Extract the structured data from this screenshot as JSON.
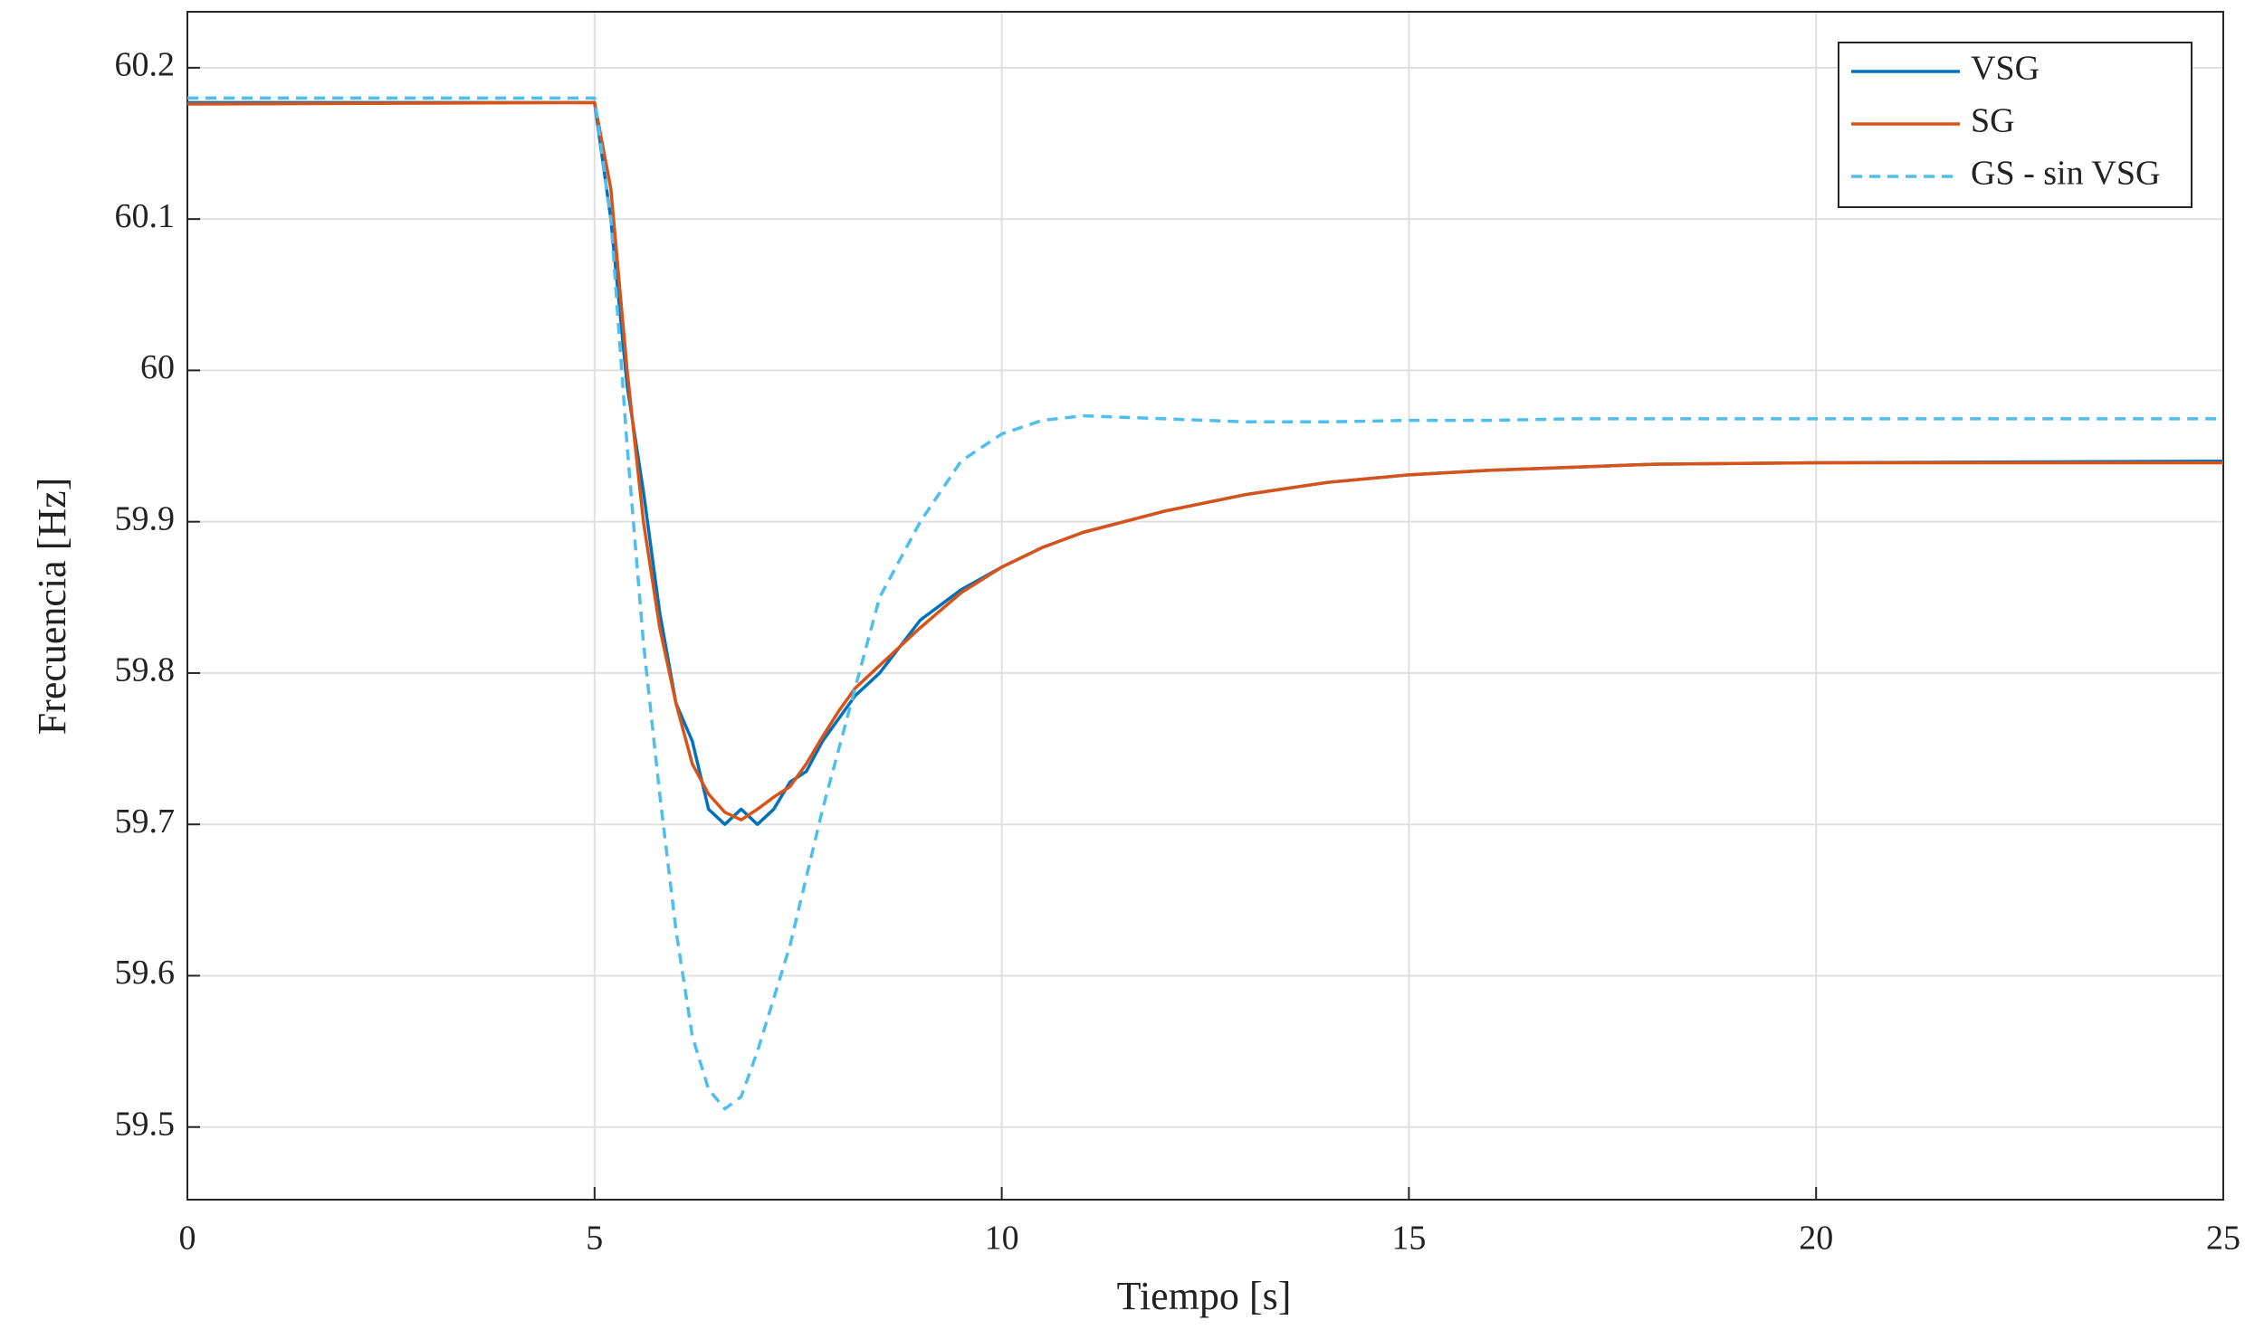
{
  "chart_data": {
    "type": "line",
    "x_label": "Tiempo [s]",
    "y_label": "Frecuencia [Hz]",
    "x": [
      0,
      5,
      5.2,
      5.4,
      5.6,
      5.8,
      6,
      6.2,
      6.4,
      6.6,
      6.8,
      7,
      7.2,
      7.4,
      7.6,
      7.8,
      8,
      8.2,
      8.5,
      9,
      9.5,
      10,
      10.5,
      11,
      12,
      13,
      14,
      15,
      16,
      17,
      18,
      20,
      25
    ],
    "series": [
      {
        "name": "VSG",
        "color": "#0072bd",
        "dashed": false,
        "values": [
          60.177,
          60.177,
          60.1,
          59.99,
          59.92,
          59.84,
          59.78,
          59.755,
          59.71,
          59.7,
          59.71,
          59.7,
          59.71,
          59.728,
          59.735,
          59.755,
          59.77,
          59.785,
          59.8,
          59.835,
          59.855,
          59.87,
          59.883,
          59.893,
          59.907,
          59.918,
          59.926,
          59.931,
          59.934,
          59.936,
          59.938,
          59.939,
          59.94
        ]
      },
      {
        "name": "SG",
        "color": "#d95319",
        "dashed": false,
        "values": [
          60.176,
          60.177,
          60.12,
          60.0,
          59.9,
          59.83,
          59.78,
          59.74,
          59.72,
          59.708,
          59.703,
          59.71,
          59.718,
          59.725,
          59.74,
          59.758,
          59.775,
          59.79,
          59.805,
          59.83,
          59.853,
          59.87,
          59.883,
          59.893,
          59.907,
          59.918,
          59.926,
          59.931,
          59.934,
          59.936,
          59.938,
          59.939,
          59.939
        ]
      },
      {
        "name": "GS - sin VSG",
        "color": "#4dbeee",
        "dashed": true,
        "values": [
          60.18,
          60.18,
          60.1,
          59.95,
          59.82,
          59.72,
          59.63,
          59.56,
          59.525,
          59.512,
          59.52,
          59.55,
          59.585,
          59.62,
          59.665,
          59.71,
          59.75,
          59.79,
          59.85,
          59.9,
          59.94,
          59.958,
          59.967,
          59.97,
          59.968,
          59.966,
          59.966,
          59.967,
          59.967,
          59.968,
          59.968,
          59.968,
          59.968
        ]
      }
    ],
    "xlim": [
      0,
      25
    ],
    "xticks": [
      0,
      5,
      10,
      15,
      20,
      25
    ],
    "ylim": [
      59.452,
      60.237
    ],
    "yticks": [
      59.5,
      59.6,
      59.7,
      59.8,
      59.9,
      60,
      60.1,
      60.2
    ],
    "grid": true,
    "legend_position": "upper-right"
  }
}
